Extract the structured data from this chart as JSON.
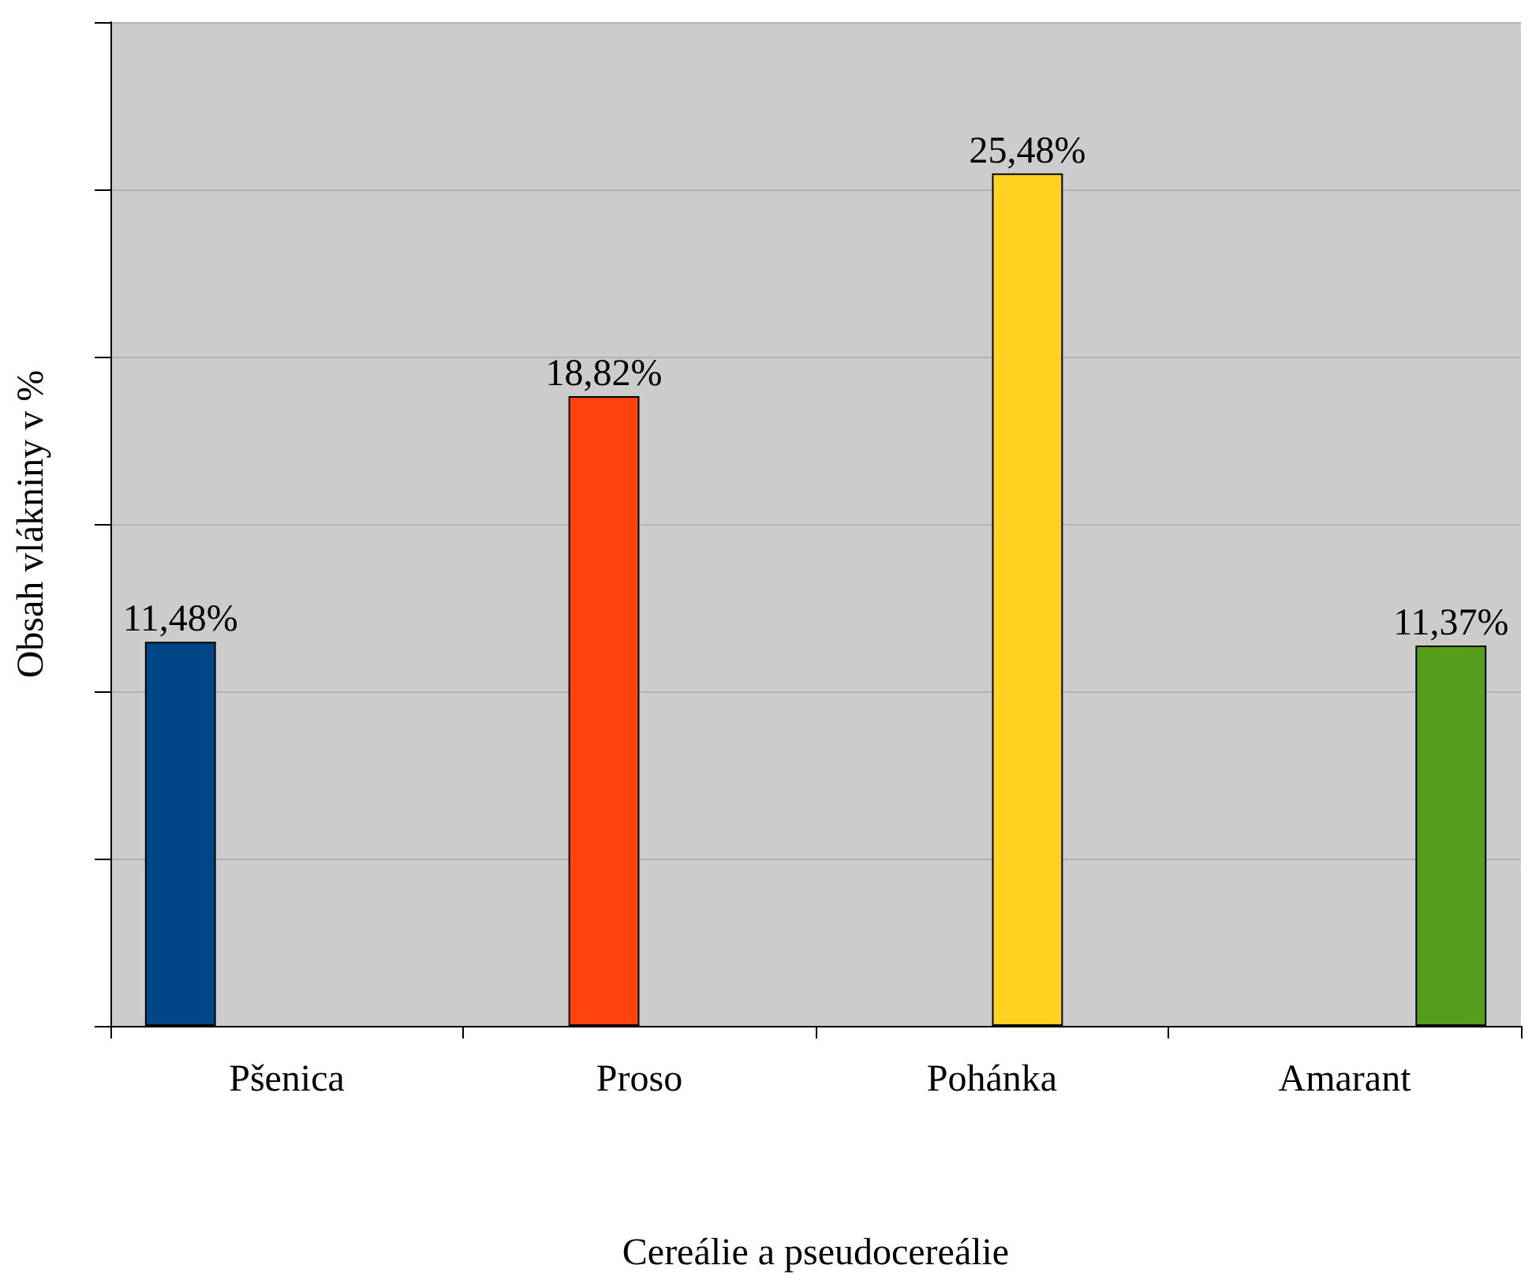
{
  "chart_data": {
    "type": "bar",
    "xlabel": "Cereálie a pseudocereálie",
    "ylabel": "Obsah vlákniny v %",
    "categories": [
      "Pšenica",
      "Proso",
      "Pohánka",
      "Amarant"
    ],
    "series": [
      {
        "color": "#004586",
        "values": [
          11.48,
          null,
          null,
          null
        ],
        "value_labels": [
          "11,48%",
          null,
          null,
          null
        ]
      },
      {
        "color": "#ff420e",
        "values": [
          null,
          18.82,
          null,
          null
        ],
        "value_labels": [
          null,
          "18,82%",
          null,
          null
        ]
      },
      {
        "color": "#ffd320",
        "values": [
          null,
          null,
          25.48,
          null
        ],
        "value_labels": [
          null,
          null,
          "25,48%",
          null
        ]
      },
      {
        "color": "#579d1c",
        "values": [
          null,
          null,
          null,
          11.37
        ],
        "value_labels": [
          null,
          null,
          null,
          "11,37%"
        ]
      }
    ],
    "ylim": [
      0,
      30
    ],
    "yticks": [
      {
        "value": 0,
        "label": null
      },
      {
        "value": 5,
        "label": null
      },
      {
        "value": 10,
        "label": null
      },
      {
        "value": 15,
        "label": null
      },
      {
        "value": 20,
        "label": null
      },
      {
        "value": 25,
        "label": null
      },
      {
        "value": 30,
        "label": null
      }
    ],
    "grid": "y",
    "tick_labels": "x"
  }
}
